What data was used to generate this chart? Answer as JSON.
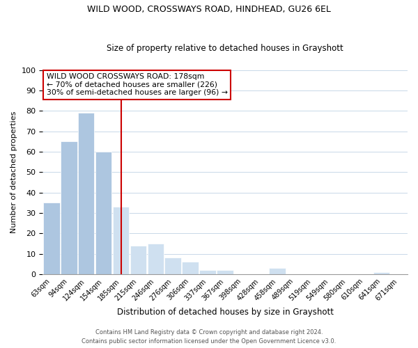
{
  "title1": "WILD WOOD, CROSSWAYS ROAD, HINDHEAD, GU26 6EL",
  "title2": "Size of property relative to detached houses in Grayshott",
  "xlabel": "Distribution of detached houses by size in Grayshott",
  "ylabel": "Number of detached properties",
  "bar_labels": [
    "63sqm",
    "94sqm",
    "124sqm",
    "154sqm",
    "185sqm",
    "215sqm",
    "246sqm",
    "276sqm",
    "306sqm",
    "337sqm",
    "367sqm",
    "398sqm",
    "428sqm",
    "458sqm",
    "489sqm",
    "519sqm",
    "549sqm",
    "580sqm",
    "610sqm",
    "641sqm",
    "671sqm"
  ],
  "bar_values": [
    35,
    65,
    79,
    60,
    33,
    14,
    15,
    8,
    6,
    2,
    2,
    0,
    0,
    3,
    0,
    0,
    0,
    0,
    0,
    1,
    0
  ],
  "bar_color_left": "#adc6e0",
  "bar_color_right": "#cfe0f0",
  "vline_x_index": 4,
  "vline_color": "#cc0000",
  "annotation_title": "WILD WOOD CROSSWAYS ROAD: 178sqm",
  "annotation_line1": "← 70% of detached houses are smaller (226)",
  "annotation_line2": "30% of semi-detached houses are larger (96) →",
  "ylim": [
    0,
    100
  ],
  "footer1": "Contains HM Land Registry data © Crown copyright and database right 2024.",
  "footer2": "Contains public sector information licensed under the Open Government Licence v3.0.",
  "background_color": "#ffffff",
  "grid_color": "#c8d8e8"
}
